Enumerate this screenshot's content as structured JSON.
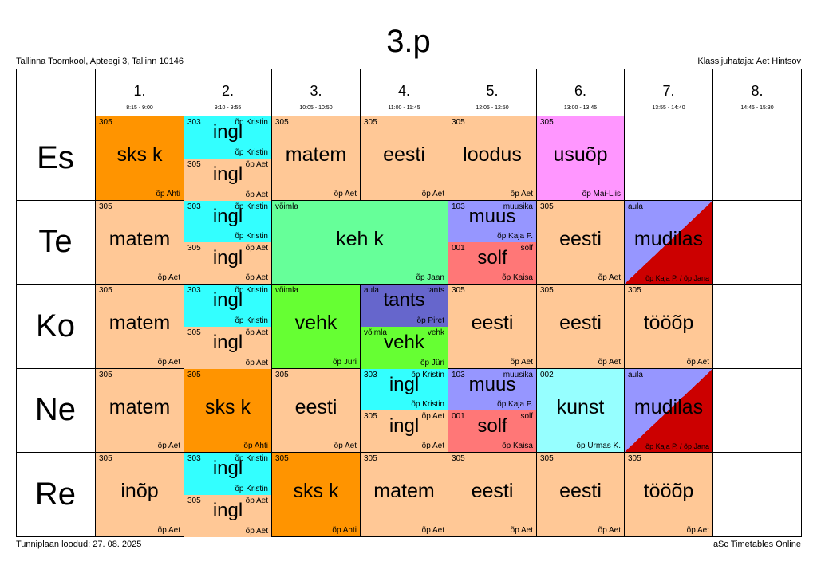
{
  "header": {
    "title": "3.p",
    "school": "Tallinna Toomkool, Apteegi 3, Tallinn 10146",
    "class_teacher": "Klassijuhataja: Aet Hintsov"
  },
  "footer": {
    "created": "Tunniplaan loodud: 27. 08. 2025",
    "generator": "aSc Timetables Online"
  },
  "colors": {
    "peach": "#FFC896",
    "orange": "#FF9400",
    "cyan": "#33FFFF",
    "pink": "#FF96FF",
    "green": "#66FF99",
    "lime": "#66FF33",
    "lavender": "#9696FF",
    "blue": "#6666CC",
    "salmon": "#FF7777",
    "lightcyan": "#96FFFF",
    "red": "#CC0000"
  },
  "periods": [
    {
      "num": "1.",
      "time": "8:15 - 9:00"
    },
    {
      "num": "2.",
      "time": "9:10 - 9:55"
    },
    {
      "num": "3.",
      "time": "10:05 - 10:50"
    },
    {
      "num": "4.",
      "time": "11:00 - 11:45"
    },
    {
      "num": "5.",
      "time": "12:05 - 12:50"
    },
    {
      "num": "6.",
      "time": "13:00 - 13:45"
    },
    {
      "num": "7.",
      "time": "13:55 - 14:40"
    },
    {
      "num": "8.",
      "time": "14:45 - 15:30"
    }
  ],
  "days": [
    "Es",
    "Te",
    "Ko",
    "Ne",
    "Re"
  ],
  "lessons": [
    {
      "day": 0,
      "period": 0,
      "span": 1,
      "part": 0,
      "parts": 1,
      "subject": "sks k",
      "room": "305",
      "group": "",
      "teacher": "õp Ahti",
      "color": "orange"
    },
    {
      "day": 0,
      "period": 1,
      "span": 1,
      "part": 0,
      "parts": 2,
      "subject": "ingl",
      "room": "303",
      "group": "õp Kristin",
      "teacher": "õp Kristin",
      "color": "cyan"
    },
    {
      "day": 0,
      "period": 1,
      "span": 1,
      "part": 1,
      "parts": 2,
      "subject": "ingl",
      "room": "305",
      "group": "õp Aet",
      "teacher": "õp Aet",
      "color": "peach"
    },
    {
      "day": 0,
      "period": 2,
      "span": 1,
      "part": 0,
      "parts": 1,
      "subject": "matem",
      "room": "305",
      "group": "",
      "teacher": "õp Aet",
      "color": "peach"
    },
    {
      "day": 0,
      "period": 3,
      "span": 1,
      "part": 0,
      "parts": 1,
      "subject": "eesti",
      "room": "305",
      "group": "",
      "teacher": "õp Aet",
      "color": "peach"
    },
    {
      "day": 0,
      "period": 4,
      "span": 1,
      "part": 0,
      "parts": 1,
      "subject": "loodus",
      "room": "305",
      "group": "",
      "teacher": "õp Aet",
      "color": "peach"
    },
    {
      "day": 0,
      "period": 5,
      "span": 1,
      "part": 0,
      "parts": 1,
      "subject": "usuõp",
      "room": "305",
      "group": "",
      "teacher": "õp Mai-Liis",
      "color": "pink"
    },
    {
      "day": 1,
      "period": 0,
      "span": 1,
      "part": 0,
      "parts": 1,
      "subject": "matem",
      "room": "305",
      "group": "",
      "teacher": "õp Aet",
      "color": "peach"
    },
    {
      "day": 1,
      "period": 1,
      "span": 1,
      "part": 0,
      "parts": 2,
      "subject": "ingl",
      "room": "303",
      "group": "õp Kristin",
      "teacher": "õp Kristin",
      "color": "cyan"
    },
    {
      "day": 1,
      "period": 1,
      "span": 1,
      "part": 1,
      "parts": 2,
      "subject": "ingl",
      "room": "305",
      "group": "õp Aet",
      "teacher": "õp Aet",
      "color": "peach"
    },
    {
      "day": 1,
      "period": 2,
      "span": 2,
      "part": 0,
      "parts": 1,
      "subject": "keh k",
      "room": "võimla",
      "group": "",
      "teacher": "õp Jaan",
      "color": "green"
    },
    {
      "day": 1,
      "period": 4,
      "span": 1,
      "part": 0,
      "parts": 2,
      "subject": "muus",
      "room": "103",
      "group": "muusika",
      "teacher": "õp Kaja P.",
      "color": "lavender"
    },
    {
      "day": 1,
      "period": 4,
      "span": 1,
      "part": 1,
      "parts": 2,
      "subject": "solf",
      "room": "001",
      "group": "solf",
      "teacher": "õp Kaisa",
      "color": "salmon"
    },
    {
      "day": 1,
      "period": 5,
      "span": 1,
      "part": 0,
      "parts": 1,
      "subject": "eesti",
      "room": "305",
      "group": "",
      "teacher": "õp Aet",
      "color": "peach"
    },
    {
      "day": 1,
      "period": 6,
      "span": 1,
      "part": 0,
      "parts": 1,
      "subject": "mudilas",
      "room": "aula",
      "group": "",
      "teacher": "õp Kaja P. / õp Jana",
      "color": "split"
    },
    {
      "day": 2,
      "period": 0,
      "span": 1,
      "part": 0,
      "parts": 1,
      "subject": "matem",
      "room": "305",
      "group": "",
      "teacher": "õp Aet",
      "color": "peach"
    },
    {
      "day": 2,
      "period": 1,
      "span": 1,
      "part": 0,
      "parts": 2,
      "subject": "ingl",
      "room": "303",
      "group": "õp Kristin",
      "teacher": "õp Kristin",
      "color": "cyan"
    },
    {
      "day": 2,
      "period": 1,
      "span": 1,
      "part": 1,
      "parts": 2,
      "subject": "ingl",
      "room": "305",
      "group": "õp Aet",
      "teacher": "õp Aet",
      "color": "peach"
    },
    {
      "day": 2,
      "period": 2,
      "span": 1,
      "part": 0,
      "parts": 1,
      "subject": "vehk",
      "room": "võimla",
      "group": "",
      "teacher": "õp Jüri",
      "color": "lime"
    },
    {
      "day": 2,
      "period": 3,
      "span": 1,
      "part": 0,
      "parts": 2,
      "subject": "tants",
      "room": "aula",
      "group": "tants",
      "teacher": "õp Piret",
      "color": "blue"
    },
    {
      "day": 2,
      "period": 3,
      "span": 1,
      "part": 1,
      "parts": 2,
      "subject": "vehk",
      "room": "võimla",
      "group": "vehk",
      "teacher": "õp Jüri",
      "color": "lime"
    },
    {
      "day": 2,
      "period": 4,
      "span": 1,
      "part": 0,
      "parts": 1,
      "subject": "eesti",
      "room": "305",
      "group": "",
      "teacher": "õp Aet",
      "color": "peach"
    },
    {
      "day": 2,
      "period": 5,
      "span": 1,
      "part": 0,
      "parts": 1,
      "subject": "eesti",
      "room": "305",
      "group": "",
      "teacher": "õp Aet",
      "color": "peach"
    },
    {
      "day": 2,
      "period": 6,
      "span": 1,
      "part": 0,
      "parts": 1,
      "subject": "tööõp",
      "room": "305",
      "group": "",
      "teacher": "õp Aet",
      "color": "peach"
    },
    {
      "day": 3,
      "period": 0,
      "span": 1,
      "part": 0,
      "parts": 1,
      "subject": "matem",
      "room": "305",
      "group": "",
      "teacher": "õp Aet",
      "color": "peach"
    },
    {
      "day": 3,
      "period": 1,
      "span": 1,
      "part": 0,
      "parts": 1,
      "subject": "sks k",
      "room": "305",
      "group": "",
      "teacher": "õp Ahti",
      "color": "orange"
    },
    {
      "day": 3,
      "period": 2,
      "span": 1,
      "part": 0,
      "parts": 1,
      "subject": "eesti",
      "room": "305",
      "group": "",
      "teacher": "õp Aet",
      "color": "peach"
    },
    {
      "day": 3,
      "period": 3,
      "span": 1,
      "part": 0,
      "parts": 2,
      "subject": "ingl",
      "room": "303",
      "group": "õp Kristin",
      "teacher": "õp Kristin",
      "color": "cyan"
    },
    {
      "day": 3,
      "period": 3,
      "span": 1,
      "part": 1,
      "parts": 2,
      "subject": "ingl",
      "room": "305",
      "group": "õp Aet",
      "teacher": "õp Aet",
      "color": "peach"
    },
    {
      "day": 3,
      "period": 4,
      "span": 1,
      "part": 0,
      "parts": 2,
      "subject": "muus",
      "room": "103",
      "group": "muusika",
      "teacher": "õp Kaja P.",
      "color": "lavender"
    },
    {
      "day": 3,
      "period": 4,
      "span": 1,
      "part": 1,
      "parts": 2,
      "subject": "solf",
      "room": "001",
      "group": "solf",
      "teacher": "õp Kaisa",
      "color": "salmon"
    },
    {
      "day": 3,
      "period": 5,
      "span": 1,
      "part": 0,
      "parts": 1,
      "subject": "kunst",
      "room": "002",
      "group": "",
      "teacher": "õp Urmas K.",
      "color": "lightcyan"
    },
    {
      "day": 3,
      "period": 6,
      "span": 1,
      "part": 0,
      "parts": 1,
      "subject": "mudilas",
      "room": "aula",
      "group": "",
      "teacher": "õp Kaja P. / õp Jana",
      "color": "split"
    },
    {
      "day": 4,
      "period": 0,
      "span": 1,
      "part": 0,
      "parts": 1,
      "subject": "inõp",
      "room": "305",
      "group": "",
      "teacher": "õp Aet",
      "color": "peach"
    },
    {
      "day": 4,
      "period": 1,
      "span": 1,
      "part": 0,
      "parts": 2,
      "subject": "ingl",
      "room": "303",
      "group": "õp Kristin",
      "teacher": "õp Kristin",
      "color": "cyan"
    },
    {
      "day": 4,
      "period": 1,
      "span": 1,
      "part": 1,
      "parts": 2,
      "subject": "ingl",
      "room": "305",
      "group": "õp Aet",
      "teacher": "õp Aet",
      "color": "peach"
    },
    {
      "day": 4,
      "period": 2,
      "span": 1,
      "part": 0,
      "parts": 1,
      "subject": "sks k",
      "room": "305",
      "group": "",
      "teacher": "õp Ahti",
      "color": "orange"
    },
    {
      "day": 4,
      "period": 3,
      "span": 1,
      "part": 0,
      "parts": 1,
      "subject": "matem",
      "room": "305",
      "group": "",
      "teacher": "õp Aet",
      "color": "peach"
    },
    {
      "day": 4,
      "period": 4,
      "span": 1,
      "part": 0,
      "parts": 1,
      "subject": "eesti",
      "room": "305",
      "group": "",
      "teacher": "õp Aet",
      "color": "peach"
    },
    {
      "day": 4,
      "period": 5,
      "span": 1,
      "part": 0,
      "parts": 1,
      "subject": "eesti",
      "room": "305",
      "group": "",
      "teacher": "õp Aet",
      "color": "peach"
    },
    {
      "day": 4,
      "period": 6,
      "span": 1,
      "part": 0,
      "parts": 1,
      "subject": "tööõp",
      "room": "305",
      "group": "",
      "teacher": "õp Aet",
      "color": "peach"
    }
  ]
}
